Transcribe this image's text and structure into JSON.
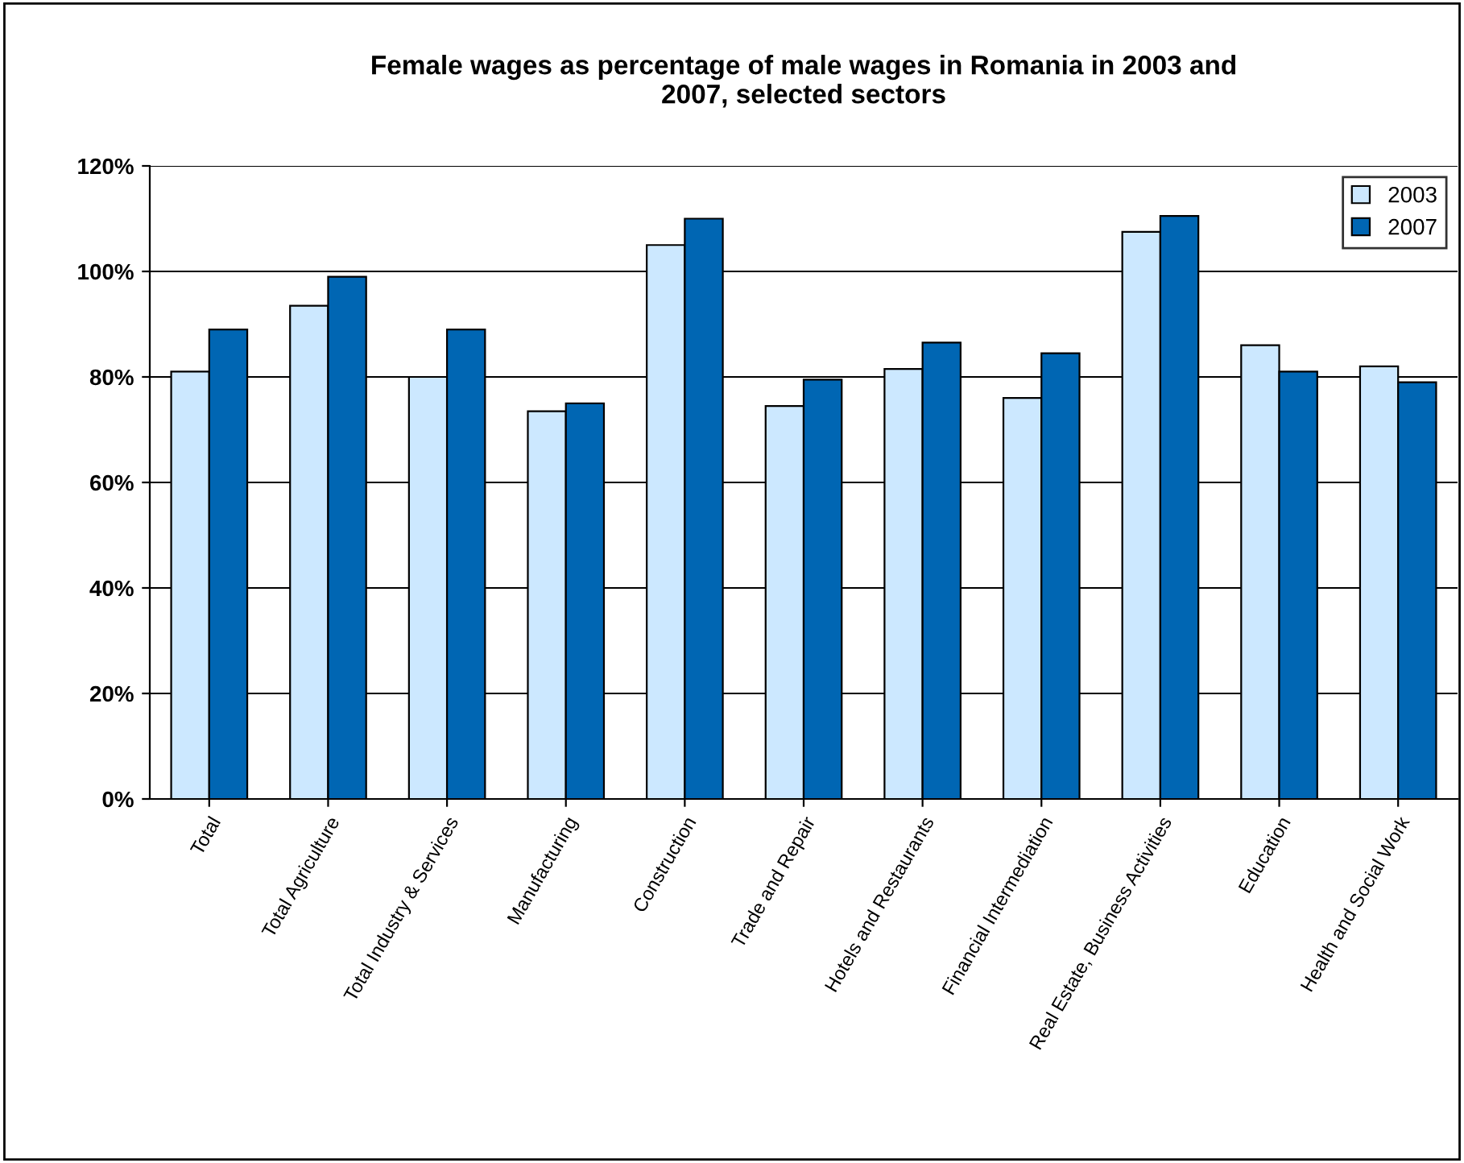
{
  "chart_data": {
    "type": "bar",
    "title": "Female wages as percentage of male wages in Romania in 2003 and\n2007, selected sectors",
    "categories": [
      "Total",
      "Total Agriculture",
      "Total Industry & Services",
      "Manufacturing",
      "Construction",
      "Trade and Repair",
      "Hotels and Restaurants",
      "Financial Intermediation",
      "Real Estate, Business Activities",
      "Education",
      "Health and Social Work"
    ],
    "series": [
      {
        "name": "2003",
        "color": "#cce8ff",
        "values": [
          81,
          93.5,
          80,
          73.5,
          105,
          74.5,
          81.5,
          76,
          107.5,
          86,
          82
        ]
      },
      {
        "name": "2007",
        "color": "#0066b3",
        "values": [
          89,
          99,
          89,
          75,
          110,
          79.5,
          86.5,
          84.5,
          110.5,
          81,
          79
        ]
      }
    ],
    "ylim": [
      0,
      120
    ],
    "yticks": [
      {
        "value": 0,
        "label": "0%"
      },
      {
        "value": 20,
        "label": "20%"
      },
      {
        "value": 40,
        "label": "40%"
      },
      {
        "value": 60,
        "label": "60%"
      },
      {
        "value": 80,
        "label": "80%"
      },
      {
        "value": 100,
        "label": "100%"
      },
      {
        "value": 120,
        "label": "120%"
      }
    ],
    "grid": "y",
    "legend": "top right"
  }
}
